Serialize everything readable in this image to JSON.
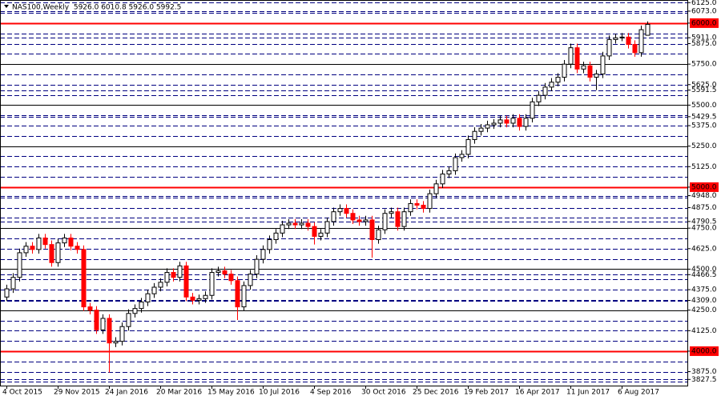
{
  "chart_data": {
    "type": "candlestick",
    "title": "NAS100,Weekly  5926.0 6010.8 5926.0 5992.5",
    "categories": [
      "4 Oct 2015",
      null,
      null,
      null,
      null,
      null,
      null,
      null,
      "29 Nov 2015",
      null,
      null,
      null,
      null,
      null,
      null,
      null,
      "24 Jan 2016",
      null,
      null,
      null,
      null,
      null,
      null,
      null,
      "20 Mar 2016",
      null,
      null,
      null,
      null,
      null,
      null,
      null,
      "15 May 2016",
      null,
      null,
      null,
      null,
      null,
      null,
      null,
      "10 Jul 2016",
      null,
      null,
      null,
      null,
      null,
      null,
      null,
      "4 Sep 2016",
      null,
      null,
      null,
      null,
      null,
      null,
      null,
      "30 Oct 2016",
      null,
      null,
      null,
      null,
      null,
      null,
      null,
      "25 Dec 2016",
      null,
      null,
      null,
      null,
      null,
      null,
      null,
      "19 Feb 2017",
      null,
      null,
      null,
      null,
      null,
      null,
      null,
      "16 Apr 2017",
      null,
      null,
      null,
      null,
      null,
      null,
      null,
      "11 Jun 2017",
      null,
      null,
      null,
      null,
      null,
      null,
      null,
      "6 Aug 2017",
      null,
      null,
      null,
      null
    ],
    "open": [
      4330,
      4380,
      4450,
      4600,
      4640,
      4620,
      4690,
      4650,
      4540,
      4660,
      4690,
      4640,
      4620,
      4270,
      4250,
      4130,
      4200,
      4050,
      4060,
      4150,
      4230,
      4260,
      4300,
      4350,
      4390,
      4420,
      4480,
      4450,
      4520,
      4330,
      4310,
      4320,
      4340,
      4480,
      4490,
      4470,
      4430,
      4270,
      4400,
      4470,
      4560,
      4620,
      4680,
      4720,
      4770,
      4780,
      4770,
      4780,
      4760,
      4700,
      4720,
      4790,
      4850,
      4870,
      4840,
      4800,
      4790,
      4800,
      4680,
      4740,
      4840,
      4850,
      4760,
      4850,
      4900,
      4890,
      4870,
      4960,
      5020,
      5080,
      5100,
      5180,
      5200,
      5290,
      5340,
      5360,
      5380,
      5390,
      5410,
      5390,
      5420,
      5370,
      5420,
      5520,
      5560,
      5610,
      5640,
      5670,
      5750,
      5850,
      5720,
      5740,
      5670,
      5690,
      5800,
      5900,
      5910,
      5915,
      5870,
      5820,
      5926
    ],
    "high": [
      4405,
      4475,
      4625,
      4665,
      4665,
      4715,
      4715,
      4675,
      4685,
      4715,
      4715,
      4665,
      4645,
      4295,
      4275,
      4225,
      4225,
      4085,
      4175,
      4255,
      4285,
      4325,
      4375,
      4415,
      4445,
      4505,
      4505,
      4545,
      4545,
      4355,
      4345,
      4365,
      4505,
      4515,
      4515,
      4495,
      4455,
      4425,
      4495,
      4585,
      4645,
      4705,
      4745,
      4795,
      4805,
      4805,
      4805,
      4805,
      4785,
      4745,
      4815,
      4875,
      4895,
      4895,
      4865,
      4825,
      4825,
      4825,
      4765,
      4865,
      4875,
      4875,
      4875,
      4925,
      4925,
      4915,
      4985,
      5045,
      5105,
      5125,
      5205,
      5225,
      5315,
      5365,
      5385,
      5405,
      5415,
      5435,
      5435,
      5445,
      5445,
      5445,
      5545,
      5585,
      5635,
      5665,
      5695,
      5775,
      5875,
      5875,
      5765,
      5765,
      5715,
      5825,
      5925,
      5935,
      5940,
      5940,
      5895,
      5985,
      6010.8
    ],
    "low": [
      4305,
      4355,
      4425,
      4575,
      4595,
      4595,
      4625,
      4515,
      4515,
      4635,
      4615,
      4595,
      4245,
      4225,
      4105,
      4105,
      3870,
      4025,
      4035,
      4125,
      4205,
      4235,
      4275,
      4325,
      4365,
      4395,
      4425,
      4425,
      4305,
      4285,
      4285,
      4295,
      4315,
      4455,
      4445,
      4405,
      4190,
      4245,
      4375,
      4445,
      4535,
      4595,
      4655,
      4695,
      4745,
      4745,
      4745,
      4735,
      4650,
      4675,
      4695,
      4765,
      4825,
      4815,
      4775,
      4765,
      4765,
      4570,
      4655,
      4715,
      4815,
      4735,
      4735,
      4825,
      4865,
      4845,
      4845,
      4935,
      4995,
      5055,
      5075,
      5155,
      5175,
      5265,
      5315,
      5335,
      5355,
      5365,
      5365,
      5365,
      5345,
      5345,
      5395,
      5495,
      5535,
      5585,
      5615,
      5645,
      5725,
      5695,
      5695,
      5645,
      5591.5,
      5665,
      5775,
      5875,
      5890,
      5845,
      5795,
      5795,
      5926
    ],
    "close": [
      4380,
      4450,
      4600,
      4640,
      4620,
      4690,
      4650,
      4540,
      4660,
      4690,
      4640,
      4620,
      4270,
      4250,
      4130,
      4200,
      4050,
      4060,
      4150,
      4230,
      4260,
      4300,
      4350,
      4390,
      4420,
      4480,
      4450,
      4520,
      4330,
      4310,
      4320,
      4340,
      4480,
      4490,
      4470,
      4430,
      4270,
      4400,
      4470,
      4560,
      4620,
      4680,
      4720,
      4770,
      4780,
      4770,
      4780,
      4760,
      4700,
      4720,
      4790,
      4850,
      4870,
      4840,
      4800,
      4790,
      4800,
      4680,
      4740,
      4840,
      4850,
      4760,
      4850,
      4900,
      4890,
      4870,
      4960,
      5020,
      5080,
      5100,
      5180,
      5200,
      5290,
      5340,
      5360,
      5380,
      5390,
      5410,
      5390,
      5420,
      5370,
      5420,
      5520,
      5560,
      5610,
      5640,
      5670,
      5750,
      5850,
      5720,
      5740,
      5670,
      5690,
      5800,
      5900,
      5910,
      5915,
      5870,
      5820,
      5960,
      5992.5
    ],
    "up_color": "#ffffff",
    "down_color": "#ff0000",
    "outline_color": "#000000",
    "ylim": [
      3790,
      6141
    ],
    "yticks": [
      {
        "value": 6125,
        "label": "6125.0"
      },
      {
        "value": 6073,
        "label": "6073.0"
      },
      {
        "value": 6000,
        "label": "6000.0"
      },
      {
        "value": 5911,
        "label": "5911.0"
      },
      {
        "value": 5875,
        "label": "5875.0"
      },
      {
        "value": 5750,
        "label": "5750.0"
      },
      {
        "value": 5625,
        "label": "5625.0"
      },
      {
        "value": 5591.5,
        "label": "5591.5"
      },
      {
        "value": 5500,
        "label": "5500.0"
      },
      {
        "value": 5429.5,
        "label": "5429.5"
      },
      {
        "value": 5375,
        "label": "5375.0"
      },
      {
        "value": 5250,
        "label": "5250.0"
      },
      {
        "value": 5125,
        "label": "5125.0"
      },
      {
        "value": 5000,
        "label": "5000.0"
      },
      {
        "value": 4948,
        "label": "4948.0"
      },
      {
        "value": 4875,
        "label": "4875.0"
      },
      {
        "value": 4790.5,
        "label": "4790.5"
      },
      {
        "value": 4750,
        "label": "4750.0"
      },
      {
        "value": 4625,
        "label": "4625.0"
      },
      {
        "value": 4500,
        "label": "4500.0"
      },
      {
        "value": 4466.5,
        "label": "4466.5"
      },
      {
        "value": 4375,
        "label": "4375.0"
      },
      {
        "value": 4309,
        "label": "4309.0"
      },
      {
        "value": 4250,
        "label": "4250.0"
      },
      {
        "value": 4125,
        "label": "4125.0"
      },
      {
        "value": 4000,
        "label": "4000.0"
      },
      {
        "value": 3875,
        "label": "3875.0"
      },
      {
        "value": 3827.5,
        "label": "3827.5"
      }
    ],
    "hlines": [
      {
        "style": "dashed",
        "color": "#000080",
        "width": 1,
        "values": [
          3812.5,
          3827.5,
          3875,
          3937.5,
          4062.5,
          4125,
          4187.5,
          4309,
          4312.5,
          4375,
          4437.5,
          4466.5,
          4562.5,
          4625,
          4687.5,
          4790.5,
          4812.5,
          4875,
          4937.5,
          4948,
          5062.5,
          5125,
          5187.5,
          5312.5,
          5375,
          5429.5,
          5437.5,
          5562.5,
          5591.5,
          5625,
          5687.5,
          5812.5,
          5875,
          5911,
          5937.5,
          6062.5,
          6073,
          6125
        ]
      },
      {
        "style": "solid",
        "color": "#000000",
        "width": 1,
        "values": [
          4250,
          4500,
          4750,
          5250,
          5500,
          5750
        ]
      },
      {
        "style": "solid",
        "color": "#ff0000",
        "width": 2,
        "values": [
          4000,
          5000,
          6000
        ]
      }
    ]
  }
}
